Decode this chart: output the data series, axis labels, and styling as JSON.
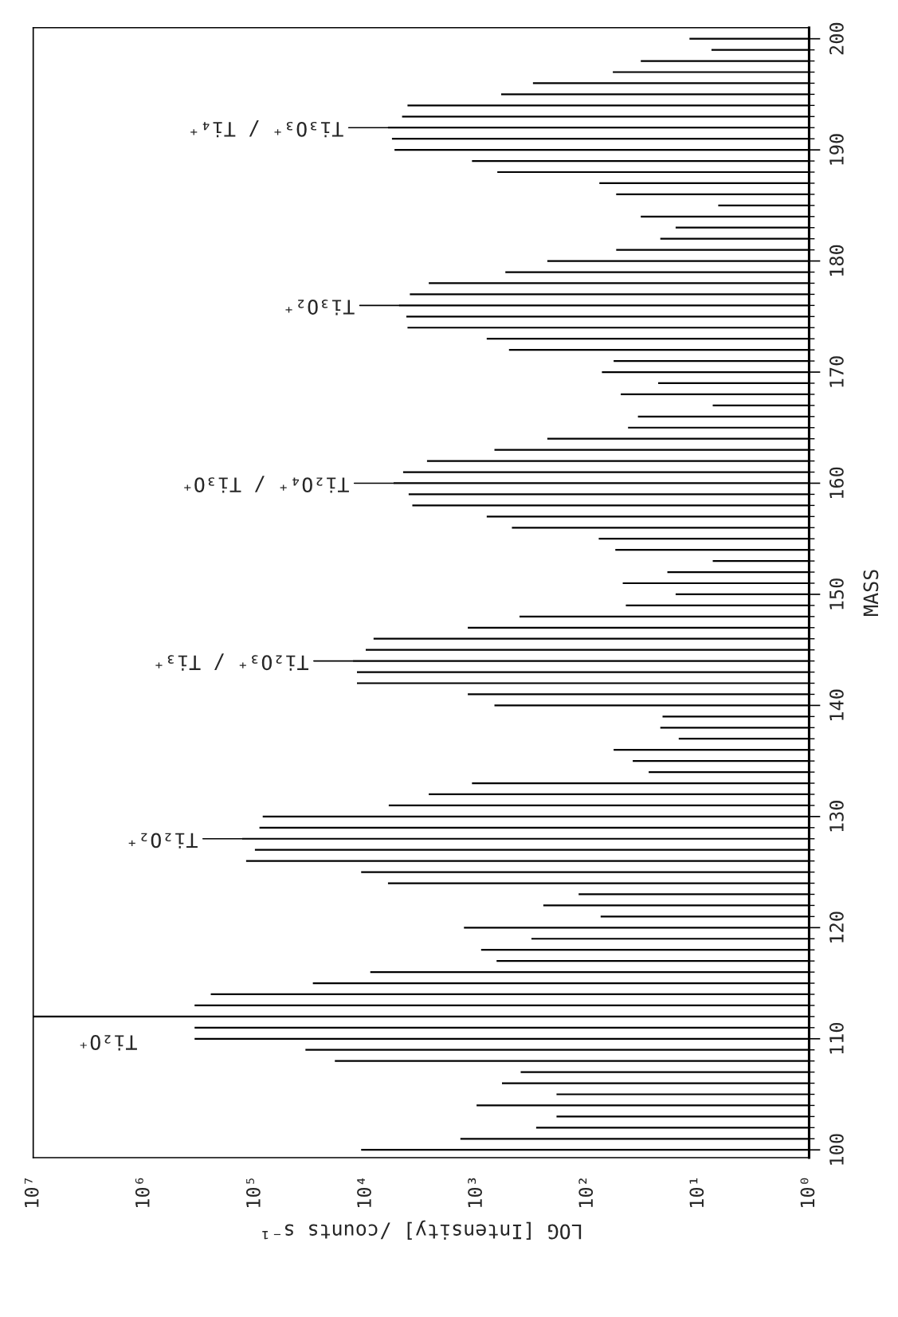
{
  "chart_data": {
    "type": "bar",
    "orientation": "horizontal",
    "log": "x",
    "color": "#000000",
    "xlabel": "LOG [Intensity] /counts s⁻¹",
    "ylabel": "MASS",
    "x": [
      100,
      101,
      102,
      103,
      104,
      105,
      106,
      107,
      108,
      109,
      110,
      111,
      112,
      113,
      114,
      115,
      116,
      117,
      118,
      119,
      120,
      121,
      122,
      123,
      124,
      125,
      126,
      127,
      128,
      129,
      130,
      131,
      132,
      133,
      134,
      135,
      136,
      137,
      138,
      139,
      140,
      141,
      142,
      143,
      144,
      145,
      146,
      147,
      148,
      149,
      150,
      151,
      152,
      153,
      154,
      155,
      156,
      157,
      158,
      159,
      160,
      161,
      162,
      163,
      164,
      165,
      166,
      167,
      168,
      169,
      170,
      171,
      172,
      173,
      174,
      175,
      176,
      177,
      178,
      179,
      180,
      181,
      182,
      183,
      184,
      185,
      186,
      187,
      188,
      189,
      190,
      191,
      192,
      193,
      194,
      195,
      196,
      197,
      198,
      199,
      200
    ],
    "values": [
      11000,
      1400,
      290,
      190,
      1000,
      190,
      590,
      400,
      19000,
      35000,
      350000,
      350000,
      10000000,
      350000,
      250000,
      30000,
      9100,
      660,
      910,
      320,
      1300,
      76,
      250,
      120,
      6300,
      11000,
      120000,
      100000,
      130000,
      91000,
      85000,
      6200,
      2700,
      1100,
      28,
      39,
      58,
      15,
      22,
      21,
      690,
      1200,
      12000,
      12000,
      13000,
      10000,
      8500,
      1200,
      410,
      45,
      16,
      48,
      19,
      7.4,
      56,
      79,
      480,
      810,
      3800,
      4100,
      5600,
      4600,
      2800,
      690,
      230,
      43,
      35,
      7.4,
      50,
      23,
      74,
      58,
      510,
      810,
      4200,
      4300,
      5000,
      4000,
      2700,
      550,
      230,
      55,
      22,
      16,
      33,
      6.6,
      55,
      78,
      650,
      1100,
      5500,
      5800,
      6300,
      4700,
      4200,
      600,
      310,
      59,
      33,
      7.6,
      12
    ],
    "xlim": [
      10000000,
      1
    ],
    "xticks": [
      {
        "value": 1,
        "label": "10⁰"
      },
      {
        "value": 10,
        "label": "10¹"
      },
      {
        "value": 100,
        "label": "10²"
      },
      {
        "value": 1000,
        "label": "10³"
      },
      {
        "value": 10000,
        "label": "10⁴"
      },
      {
        "value": 100000,
        "label": "10⁵"
      },
      {
        "value": 1000000,
        "label": "10⁶"
      },
      {
        "value": 10000000,
        "label": "10⁷"
      }
    ],
    "ylim": [
      99.3,
      201
    ],
    "yticks": [
      100,
      {
        "value": 101,
        "label": null
      },
      {
        "value": 102,
        "label": null
      },
      {
        "value": 103,
        "label": null
      },
      {
        "value": 104,
        "label": null
      },
      {
        "value": 105,
        "label": null
      },
      {
        "value": 106,
        "label": null
      },
      {
        "value": 107,
        "label": null
      },
      {
        "value": 108,
        "label": null
      },
      {
        "value": 109,
        "label": null
      },
      110,
      {
        "value": 111,
        "label": null
      },
      {
        "value": 112,
        "label": null
      },
      {
        "value": 113,
        "label": null
      },
      {
        "value": 114,
        "label": null
      },
      {
        "value": 115,
        "label": null
      },
      {
        "value": 116,
        "label": null
      },
      {
        "value": 117,
        "label": null
      },
      {
        "value": 118,
        "label": null
      },
      {
        "value": 119,
        "label": null
      },
      120,
      {
        "value": 121,
        "label": null
      },
      {
        "value": 122,
        "label": null
      },
      {
        "value": 123,
        "label": null
      },
      {
        "value": 124,
        "label": null
      },
      {
        "value": 125,
        "label": null
      },
      {
        "value": 126,
        "label": null
      },
      {
        "value": 127,
        "label": null
      },
      {
        "value": 128,
        "label": null
      },
      {
        "value": 129,
        "label": null
      },
      130,
      {
        "value": 131,
        "label": null
      },
      {
        "value": 132,
        "label": null
      },
      {
        "value": 133,
        "label": null
      },
      {
        "value": 134,
        "label": null
      },
      {
        "value": 135,
        "label": null
      },
      {
        "value": 136,
        "label": null
      },
      {
        "value": 137,
        "label": null
      },
      {
        "value": 138,
        "label": null
      },
      {
        "value": 139,
        "label": null
      },
      140,
      {
        "value": 141,
        "label": null
      },
      {
        "value": 142,
        "label": null
      },
      {
        "value": 143,
        "label": null
      },
      {
        "value": 144,
        "label": null
      },
      {
        "value": 145,
        "label": null
      },
      {
        "value": 146,
        "label": null
      },
      {
        "value": 147,
        "label": null
      },
      {
        "value": 148,
        "label": null
      },
      {
        "value": 149,
        "label": null
      },
      150,
      {
        "value": 151,
        "label": null
      },
      {
        "value": 152,
        "label": null
      },
      {
        "value": 153,
        "label": null
      },
      {
        "value": 154,
        "label": null
      },
      {
        "value": 155,
        "label": null
      },
      {
        "value": 156,
        "label": null
      },
      {
        "value": 157,
        "label": null
      },
      {
        "value": 158,
        "label": null
      },
      {
        "value": 159,
        "label": null
      },
      160,
      {
        "value": 161,
        "label": null
      },
      {
        "value": 162,
        "label": null
      },
      {
        "value": 163,
        "label": null
      },
      {
        "value": 164,
        "label": null
      },
      {
        "value": 165,
        "label": null
      },
      {
        "value": 166,
        "label": null
      },
      {
        "value": 167,
        "label": null
      },
      {
        "value": 168,
        "label": null
      },
      {
        "value": 169,
        "label": null
      },
      170,
      {
        "value": 171,
        "label": null
      },
      {
        "value": 172,
        "label": null
      },
      {
        "value": 173,
        "label": null
      },
      {
        "value": 174,
        "label": null
      },
      {
        "value": 175,
        "label": null
      },
      {
        "value": 176,
        "label": null
      },
      {
        "value": 177,
        "label": null
      },
      {
        "value": 178,
        "label": null
      },
      {
        "value": 179,
        "label": null
      },
      180,
      {
        "value": 181,
        "label": null
      },
      {
        "value": 182,
        "label": null
      },
      {
        "value": 183,
        "label": null
      },
      {
        "value": 184,
        "label": null
      },
      {
        "value": 185,
        "label": null
      },
      {
        "value": 186,
        "label": null
      },
      {
        "value": 187,
        "label": null
      },
      {
        "value": 188,
        "label": null
      },
      {
        "value": 189,
        "label": null
      },
      190,
      {
        "value": 191,
        "label": null
      },
      {
        "value": 192,
        "label": null
      },
      {
        "value": 193,
        "label": null
      },
      {
        "value": 194,
        "label": null
      },
      {
        "value": 195,
        "label": null
      },
      {
        "value": 196,
        "label": null
      },
      {
        "value": 197,
        "label": null
      },
      {
        "value": 198,
        "label": null
      },
      {
        "value": 199,
        "label": null
      },
      200
    ],
    "annotations": [
      {
        "text": "Ti₂O⁺",
        "x": 10000000,
        "y": 112
      },
      {
        "text": "Ti₂O₂⁺",
        "x": 130000,
        "y": 128
      },
      {
        "text": "Ti₂O₃⁺ / Ti₃⁺",
        "x": 13000,
        "y": 144
      },
      {
        "text": "Ti₂O₄⁺ / Ti₃O⁺",
        "x": 5600,
        "y": 160
      },
      {
        "text": "Ti₃O₂⁺",
        "x": 5000,
        "y": 176
      },
      {
        "text": "Ti₃O₃⁺ / Ti₄⁺",
        "x": 6300,
        "y": 192
      }
    ],
    "grid": false
  }
}
